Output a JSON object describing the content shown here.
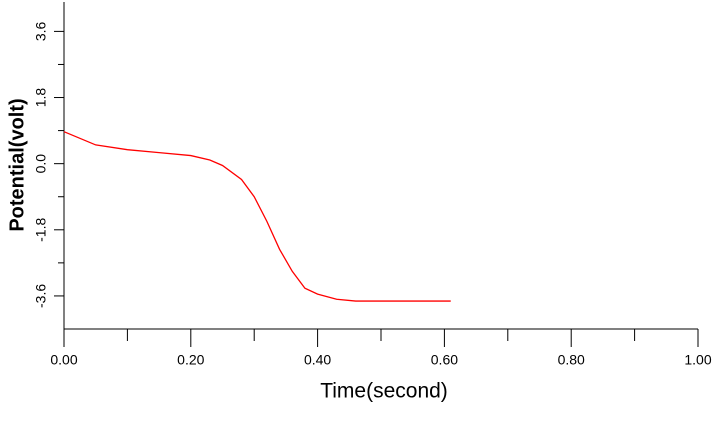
{
  "chart_data": {
    "type": "line",
    "x_label": "Time(second)",
    "y_label": "Potential(volt)",
    "x": [
      0,
      0.05,
      0.1,
      0.15,
      0.2,
      0.23,
      0.25,
      0.28,
      0.3,
      0.32,
      0.34,
      0.36,
      0.38,
      0.4,
      0.43,
      0.46,
      0.5,
      0.55,
      0.61
    ],
    "series": [
      {
        "color": "#ff0000",
        "values": [
          0.87,
          0.51,
          0.38,
          0.3,
          0.22,
          0.1,
          -0.05,
          -0.43,
          -0.9,
          -1.57,
          -2.33,
          -2.93,
          -3.39,
          -3.55,
          -3.69,
          -3.74,
          -3.74,
          -3.74,
          -3.74
        ]
      }
    ],
    "xlim": [
      0,
      1
    ],
    "ylim": [
      -4.5,
      4.4
    ],
    "xticks": [
      {
        "value": 0,
        "label": "0.00"
      },
      {
        "value": 0.2,
        "label": "0.20"
      },
      {
        "value": 0.4,
        "label": "0.40"
      },
      {
        "value": 0.6,
        "label": "0.60"
      },
      {
        "value": 0.8,
        "label": "0.80"
      },
      {
        "value": 1,
        "label": "1.00"
      }
    ],
    "xminorticks": [
      0.1,
      0.3,
      0.5,
      0.7,
      0.9
    ],
    "yticks": [
      -3.6,
      -1.8,
      {
        "value": 0,
        "label": "0.0"
      },
      1.8,
      3.6
    ],
    "yminorticks": [
      -2.7,
      -0.9,
      0.9,
      2.7
    ],
    "grid": false
  }
}
